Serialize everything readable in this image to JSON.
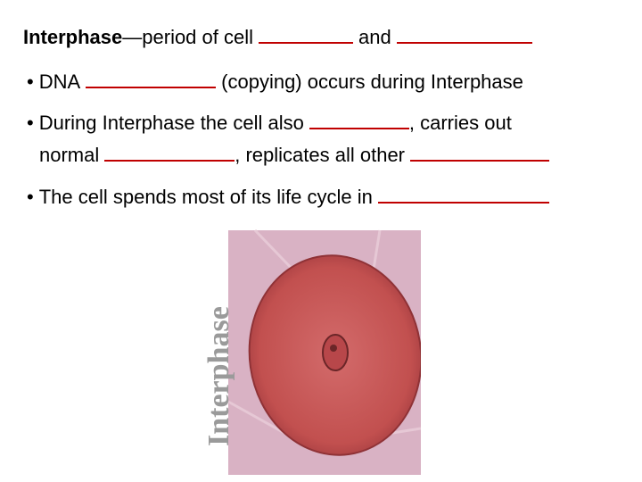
{
  "title": {
    "term": "Interphase",
    "rest": "—period of cell",
    "joiner": "and"
  },
  "bullets": [
    {
      "parts": [
        "DNA",
        "(copying) occurs during Interphase"
      ]
    },
    {
      "parts": [
        "During Interphase the cell also",
        ", carries out",
        "normal",
        ", replicates all other"
      ]
    },
    {
      "parts": [
        "The cell spends most of its life cycle in"
      ]
    }
  ],
  "image": {
    "label": "Interphase"
  }
}
